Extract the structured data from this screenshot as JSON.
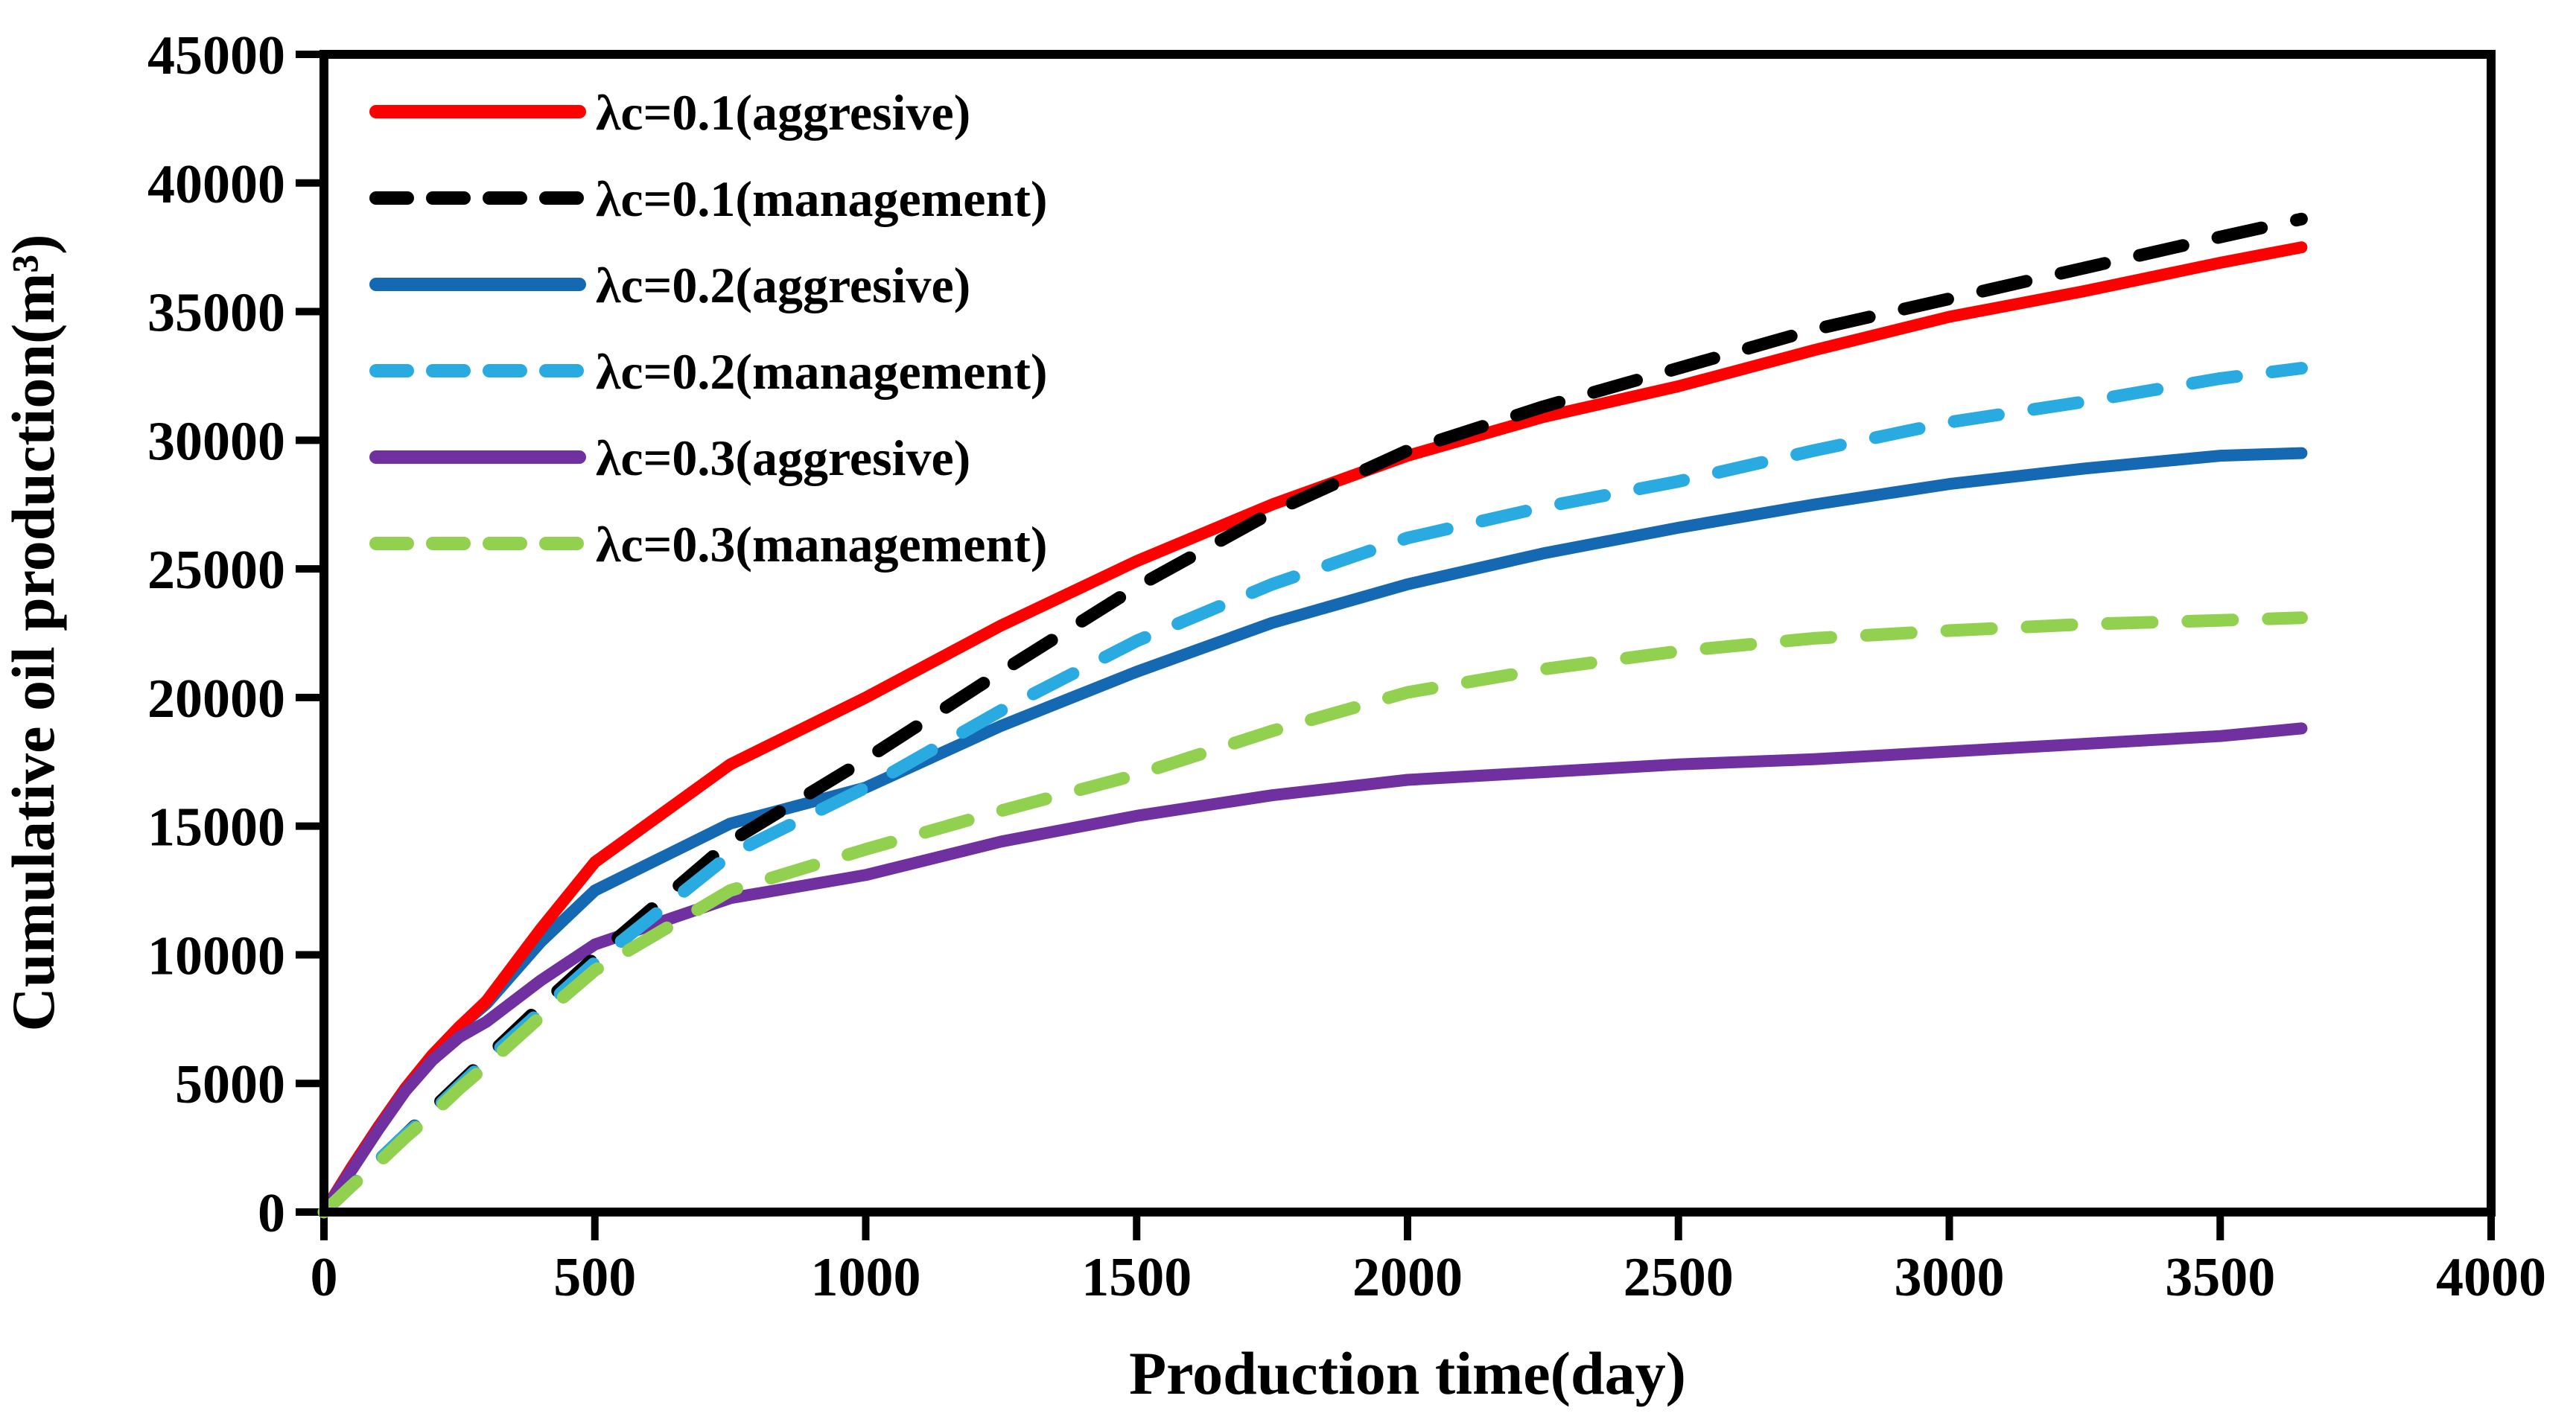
{
  "chart_data": {
    "type": "line",
    "title": "",
    "xlabel": "Production time(day)",
    "ylabel": "Cumulative oil production(m³)",
    "xlim": [
      0,
      4000
    ],
    "ylim": [
      0,
      45000
    ],
    "xticks": [
      0,
      500,
      1000,
      1500,
      2000,
      2500,
      3000,
      3500,
      4000
    ],
    "yticks": [
      0,
      5000,
      10000,
      15000,
      20000,
      25000,
      30000,
      35000,
      40000,
      45000
    ],
    "grid": false,
    "legend_position": "inside top-left",
    "x_days": [
      0,
      50,
      100,
      150,
      200,
      250,
      300,
      400,
      500,
      750,
      1000,
      1250,
      1500,
      1750,
      2000,
      2250,
      2500,
      2750,
      3000,
      3250,
      3500,
      3650
    ],
    "series": [
      {
        "name": "λc=0.1(aggresive)",
        "color": "#FF0000",
        "style": "solid",
        "values": [
          0,
          1700,
          3300,
          4800,
          6100,
          7200,
          8200,
          11000,
          13600,
          17400,
          20000,
          22800,
          25300,
          27500,
          29400,
          30900,
          32100,
          33500,
          34800,
          35800,
          36900,
          37500
        ]
      },
      {
        "name": "λc=0.1(management)",
        "color": "#000000",
        "style": "dashed",
        "values": [
          0,
          1000,
          2000,
          3000,
          4000,
          5000,
          6000,
          8000,
          9900,
          14400,
          17600,
          21000,
          24300,
          27200,
          29600,
          31300,
          32800,
          34300,
          35500,
          36700,
          37900,
          38600
        ]
      },
      {
        "name": "λc=0.2(aggresive)",
        "color": "#1569B3",
        "style": "solid",
        "values": [
          0,
          1700,
          3300,
          4800,
          6100,
          7200,
          8100,
          10500,
          12500,
          15100,
          16500,
          18900,
          21000,
          22900,
          24400,
          25600,
          26600,
          27500,
          28300,
          28900,
          29400,
          29500
        ]
      },
      {
        "name": "λc=0.2(management)",
        "color": "#29ABE2",
        "style": "dashed",
        "values": [
          0,
          1000,
          2000,
          3000,
          3900,
          4900,
          5900,
          7800,
          9700,
          13900,
          16500,
          19500,
          22200,
          24400,
          26200,
          27400,
          28400,
          29600,
          30700,
          31500,
          32400,
          32800
        ]
      },
      {
        "name": "λc=0.3(aggresive)",
        "color": "#7030A0",
        "style": "solid",
        "values": [
          0,
          1600,
          3200,
          4700,
          5900,
          6800,
          7400,
          9000,
          10400,
          12200,
          13100,
          14400,
          15400,
          16200,
          16800,
          17100,
          17400,
          17600,
          17900,
          18200,
          18500,
          18800
        ]
      },
      {
        "name": "λc=0.3(management)",
        "color": "#92D050",
        "style": "dashed",
        "values": [
          0,
          1000,
          1900,
          2900,
          3800,
          4800,
          5700,
          7600,
          9400,
          12500,
          14100,
          15600,
          17000,
          18700,
          20200,
          21100,
          21800,
          22300,
          22600,
          22850,
          23000,
          23100
        ]
      }
    ]
  }
}
